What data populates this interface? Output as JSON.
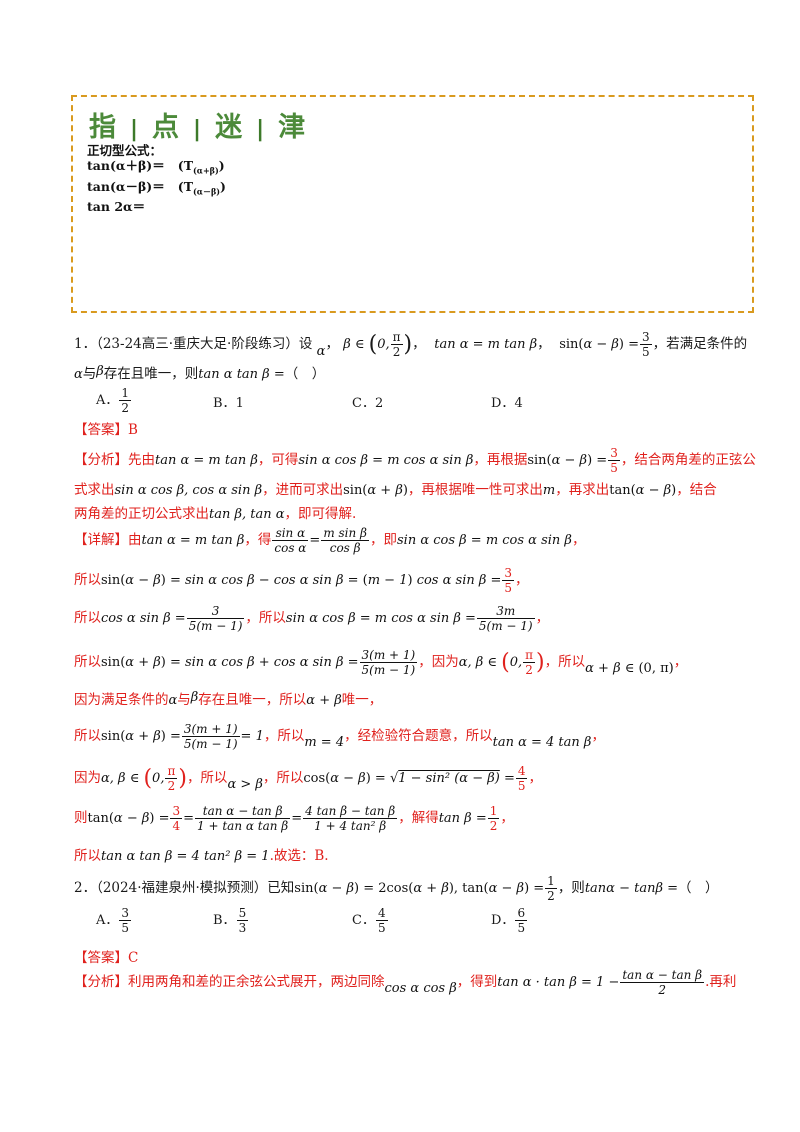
{
  "tips": {
    "title_chars": [
      "指",
      "点",
      "迷",
      "津"
    ],
    "heading": "正切型公式：",
    "lines": [
      {
        "lhs": "tan(α＋β)＝",
        "label": "(T",
        "sub": "(α+β)",
        "close": ")"
      },
      {
        "lhs": "tan(α－β)＝",
        "label": "(T",
        "sub": "(α－β)",
        "close": ")"
      },
      {
        "lhs": "tan 2α＝",
        "label": "",
        "sub": "",
        "close": ""
      }
    ]
  },
  "q1": {
    "number": "1．",
    "source": "（23-24高三·重庆大足·阶段练习）设",
    "text_a": "，若满足条件的",
    "text_b": "与",
    "text_c": "存在且唯一，则",
    "blank": "（　）",
    "options": [
      {
        "label": "A．",
        "value": "1/2"
      },
      {
        "label": "B．",
        "value": "1"
      },
      {
        "label": "C．",
        "value": "2"
      },
      {
        "label": "D．",
        "value": "4"
      }
    ],
    "answer_tag": "【答案】",
    "answer": "B",
    "analysis_tag": "【分析】",
    "analysis": [
      "先由",
      "，可得",
      "，再根据",
      "，结合两角差的正弦公",
      "式求出",
      "，进而可求出",
      "，再根据唯一性可求出",
      "，再求出",
      "，结合",
      "两角差的正切公式求出",
      "，即可得解."
    ],
    "detail_tag": "【详解】",
    "detail": {
      "d1a": "由",
      "d1b": "，得",
      "d1c": "，即",
      "suo_yi": "所以",
      "d5b": "，因为",
      "d6": "因为满足条件的",
      "d6b": "与",
      "d6c": "存在且唯一，所以",
      "d6d": "唯一，",
      "d7b": "，所以",
      "d7c": "，经检验符合题意，所以",
      "d8a": "因为",
      "d8b": "，所以",
      "d8c": "，所以",
      "d9a": "则",
      "d9b": "，解得",
      "d10c": ".故选：B."
    }
  },
  "q2": {
    "number": "2．",
    "source": "（2024·福建泉州·模拟预测）已知",
    "text_a": "，则",
    "blank": "（　）",
    "options": [
      {
        "label": "A．",
        "num": "3",
        "den": "5"
      },
      {
        "label": "B．",
        "num": "5",
        "den": "3"
      },
      {
        "label": "C．",
        "num": "4",
        "den": "5"
      },
      {
        "label": "D．",
        "num": "6",
        "den": "5"
      }
    ],
    "answer_tag": "【答案】",
    "answer": "C",
    "analysis_tag": "【分析】",
    "analysis_a": "利用两角和差的正余弦公式展开，两边同除",
    "analysis_b": "，得到",
    "analysis_c": ".再利"
  }
}
